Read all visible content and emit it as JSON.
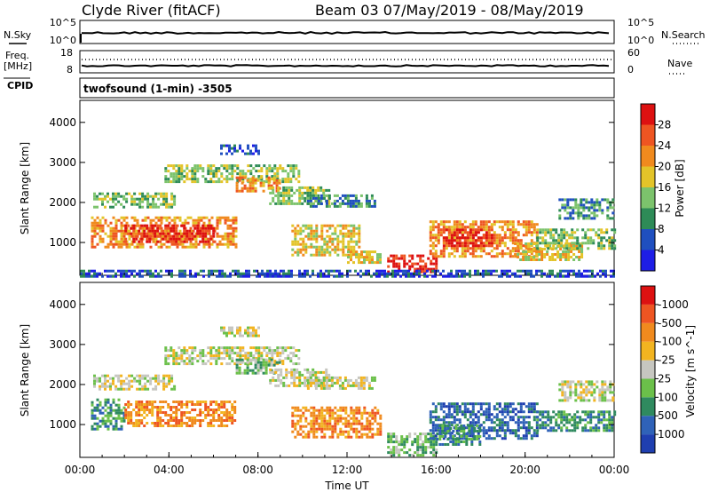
{
  "header": {
    "station": "Clyde River (fitACF)",
    "beam_label": "Beam 03 07/May/2019 - 08/May/2019"
  },
  "strip_nsky": {
    "left_label": "N.Sky",
    "left_ticks": [
      "10^5",
      "10^0"
    ],
    "right_label": "N.Search",
    "right_ticks": [
      "10^5",
      "10^0"
    ]
  },
  "strip_freq": {
    "left_label_1": "Freq.",
    "left_label_2": "[MHz]",
    "left_ticks": [
      "18",
      "8"
    ],
    "right_label": "Nave",
    "right_ticks": [
      "60",
      "0"
    ]
  },
  "strip_cpid": {
    "label": "CPID",
    "value": "twofsound (1-min) -3505"
  },
  "chart_data": [
    {
      "type": "heatmap",
      "name": "power-panel",
      "ylabel": "Slant Range [km]",
      "yticks": [
        "1000",
        "2000",
        "3000",
        "4000"
      ],
      "ylim": [
        180,
        4550
      ],
      "xlim_hours": [
        0,
        24
      ],
      "xticks": [
        "00:00",
        "04:00",
        "08:00",
        "12:00",
        "16:00",
        "20:00",
        "00:00"
      ],
      "colorbar": {
        "title": "Power [dB]",
        "ticks": [
          "4",
          "8",
          "12",
          "16",
          "20",
          "24",
          "28"
        ],
        "colors": [
          "#1e1ee6",
          "#1f4fbf",
          "#2e8b57",
          "#7cc36c",
          "#e3c429",
          "#f08a1e",
          "#ee5522",
          "#dd1111"
        ]
      },
      "echo_regions": [
        {
          "t0": 0.6,
          "t1": 4.2,
          "r0": 1900,
          "r1": 2250,
          "level": 3
        },
        {
          "t0": 0.5,
          "t1": 7.0,
          "r0": 900,
          "r1": 1650,
          "level": 5
        },
        {
          "t0": 2.0,
          "t1": 6.0,
          "r0": 1000,
          "r1": 1450,
          "level": 7
        },
        {
          "t0": 3.8,
          "t1": 9.8,
          "r0": 2550,
          "r1": 2950,
          "level": 3
        },
        {
          "t0": 6.3,
          "t1": 8.0,
          "r0": 3250,
          "r1": 3450,
          "level": 1
        },
        {
          "t0": 7.0,
          "t1": 9.0,
          "r0": 2300,
          "r1": 2650,
          "level": 5
        },
        {
          "t0": 8.5,
          "t1": 11.2,
          "r0": 2000,
          "r1": 2400,
          "level": 3
        },
        {
          "t0": 10.2,
          "t1": 13.2,
          "r0": 1900,
          "r1": 2200,
          "level": 2
        },
        {
          "t0": 9.5,
          "t1": 12.5,
          "r0": 700,
          "r1": 1450,
          "level": 4
        },
        {
          "t0": 12.0,
          "t1": 13.5,
          "r0": 500,
          "r1": 800,
          "level": 4
        },
        {
          "t0": 13.8,
          "t1": 16.0,
          "r0": 250,
          "r1": 700,
          "level": 7
        },
        {
          "t0": 15.7,
          "t1": 20.5,
          "r0": 650,
          "r1": 1550,
          "level": 5
        },
        {
          "t0": 16.3,
          "t1": 18.5,
          "r0": 900,
          "r1": 1350,
          "level": 7
        },
        {
          "t0": 19.5,
          "t1": 22.5,
          "r0": 550,
          "r1": 1000,
          "level": 4
        },
        {
          "t0": 20.5,
          "t1": 24.0,
          "r0": 850,
          "r1": 1350,
          "level": 3
        },
        {
          "t0": 21.5,
          "t1": 24.0,
          "r0": 1600,
          "r1": 2100,
          "level": 2
        },
        {
          "t0": 0.0,
          "t1": 24.0,
          "r0": 180,
          "r1": 320,
          "level": 1
        }
      ]
    },
    {
      "type": "heatmap",
      "name": "velocity-panel",
      "ylabel": "Slant Range [km]",
      "yticks": [
        "1000",
        "2000",
        "3000",
        "4000"
      ],
      "ylim": [
        180,
        4550
      ],
      "xlim_hours": [
        0,
        24
      ],
      "xticks": [
        "00:00",
        "04:00",
        "08:00",
        "12:00",
        "16:00",
        "20:00",
        "00:00"
      ],
      "xlabel": "Time UT",
      "colorbar": {
        "title": "Velocity [m s^-1]",
        "ticks": [
          "1000",
          "500",
          "100",
          "25",
          "-25",
          "-100",
          "-500",
          "-1000"
        ],
        "colors": [
          "#1f3fb0",
          "#2f62b8",
          "#2f8a5f",
          "#6bc04a",
          "#c6c6c0",
          "#f2b420",
          "#f08a1e",
          "#ee5522",
          "#dd1111"
        ]
      },
      "echo_regions": [
        {
          "t0": 0.6,
          "t1": 4.2,
          "r0": 1900,
          "r1": 2250,
          "level": 4
        },
        {
          "t0": 0.5,
          "t1": 2.0,
          "r0": 900,
          "r1": 1650,
          "level": 2
        },
        {
          "t0": 2.0,
          "t1": 7.0,
          "r0": 950,
          "r1": 1600,
          "level": 6
        },
        {
          "t0": 3.8,
          "t1": 9.8,
          "r0": 2550,
          "r1": 2950,
          "level": 4
        },
        {
          "t0": 6.3,
          "t1": 8.0,
          "r0": 3250,
          "r1": 3450,
          "level": 4
        },
        {
          "t0": 7.0,
          "t1": 9.0,
          "r0": 2300,
          "r1": 2650,
          "level": 3
        },
        {
          "t0": 8.5,
          "t1": 11.2,
          "r0": 2000,
          "r1": 2400,
          "level": 4
        },
        {
          "t0": 10.2,
          "t1": 13.2,
          "r0": 1900,
          "r1": 2200,
          "level": 4
        },
        {
          "t0": 9.5,
          "t1": 13.5,
          "r0": 700,
          "r1": 1450,
          "level": 6
        },
        {
          "t0": 13.8,
          "t1": 16.0,
          "r0": 250,
          "r1": 800,
          "level": 3
        },
        {
          "t0": 15.7,
          "t1": 20.5,
          "r0": 650,
          "r1": 1550,
          "level": 1
        },
        {
          "t0": 16.0,
          "t1": 18.0,
          "r0": 500,
          "r1": 1000,
          "level": 2
        },
        {
          "t0": 20.5,
          "t1": 24.0,
          "r0": 850,
          "r1": 1350,
          "level": 2
        },
        {
          "t0": 21.5,
          "t1": 24.0,
          "r0": 1600,
          "r1": 2100,
          "level": 4
        }
      ]
    }
  ]
}
